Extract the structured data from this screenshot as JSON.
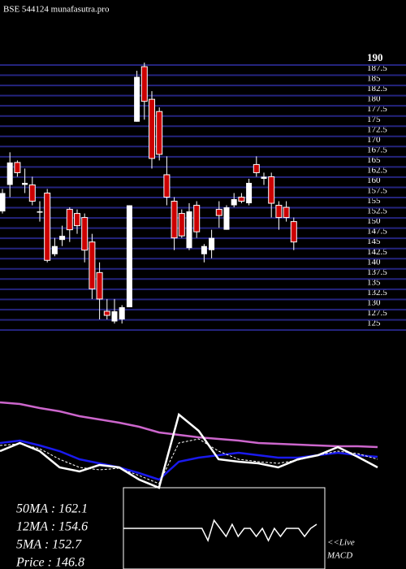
{
  "chart_data": {
    "type": "candlestick",
    "title": "BSE 544124  munafasutra.pro",
    "open": [
      152.5,
      159,
      164.5,
      159,
      159,
      152.5,
      157,
      142,
      145.5,
      153,
      152,
      151,
      145,
      137.5,
      128,
      125.5,
      126,
      129,
      174.5,
      188,
      180,
      177,
      161.5,
      155,
      152,
      143.5,
      154,
      142,
      143,
      153,
      148,
      154,
      156,
      154.5,
      164,
      160.5,
      161,
      154,
      153.5,
      150
    ],
    "high": [
      158,
      167,
      165,
      163,
      161,
      155,
      158,
      146,
      149,
      153.5,
      153,
      152,
      147,
      140,
      131,
      131,
      129.5,
      154,
      187,
      189,
      182,
      178,
      166,
      156,
      153,
      154.5,
      155,
      144.5,
      148,
      155,
      154,
      157,
      157,
      160.5,
      166,
      162,
      162,
      155,
      155,
      151
    ],
    "low": [
      152,
      156,
      161,
      157,
      154,
      150,
      140,
      141.5,
      144,
      145,
      147,
      140,
      131,
      126,
      126,
      125,
      125,
      129,
      174.5,
      175,
      163,
      165,
      154,
      143,
      146,
      143,
      146,
      140,
      141,
      148.5,
      148,
      153.5,
      154.5,
      154,
      161,
      159,
      151,
      148,
      150,
      143
    ],
    "close": [
      157,
      164.5,
      162,
      159.5,
      155,
      152.5,
      140.5,
      144,
      146.5,
      148,
      149,
      143,
      133.5,
      131,
      127,
      128,
      129,
      154,
      185.5,
      179.5,
      165.5,
      166.5,
      156,
      146,
      146.5,
      152.5,
      147.5,
      144,
      146,
      151.5,
      153.5,
      155.5,
      155,
      159.5,
      162,
      161,
      154.5,
      151,
      151,
      145
    ],
    "ylim": [
      125,
      190
    ],
    "yticks": [
      125,
      127.5,
      130,
      132.5,
      135,
      137.5,
      140,
      142.5,
      145,
      147.5,
      150,
      152.5,
      155,
      157.5,
      160,
      162.5,
      165,
      167.5,
      170,
      172.5,
      175,
      177.5,
      180,
      182.5,
      185,
      187.5,
      190
    ],
    "grid": true,
    "grid_color": "#24247e",
    "up_color": "#ffffff",
    "down_color": "#cc0000",
    "indicators": {
      "ylim": [
        0,
        120
      ],
      "series": [
        {
          "color": "#cc66cc",
          "style": "solid",
          "values": [
            110,
            108,
            103,
            99,
            93,
            89,
            85,
            80,
            73,
            70,
            67,
            65,
            63,
            60,
            59,
            58,
            57,
            56,
            56,
            55
          ]
        },
        {
          "color": "#1a1aee",
          "style": "solid",
          "values": [
            60,
            63,
            57,
            50,
            40,
            35,
            30,
            23,
            15,
            37,
            42,
            45,
            48,
            45,
            42,
            42,
            45,
            48,
            45,
            43
          ]
        },
        {
          "color": "#ffffff",
          "style": "solid",
          "values": [
            50,
            60,
            50,
            30,
            25,
            33,
            30,
            15,
            5,
            95,
            75,
            40,
            37,
            35,
            30,
            40,
            45,
            55,
            43,
            30
          ]
        },
        {
          "color": "#ffffff",
          "style": "dashed",
          "values": [
            57,
            59,
            53,
            40,
            30,
            27,
            29,
            20,
            10,
            60,
            65,
            50,
            40,
            37,
            35,
            39,
            45,
            50,
            47,
            40
          ]
        }
      ]
    },
    "macd": {
      "ylim": [
        -10,
        10
      ],
      "values": [
        0,
        0,
        0,
        0,
        0,
        0,
        0,
        0,
        0,
        0,
        0,
        0,
        0,
        0,
        -3,
        2,
        0,
        -2,
        1,
        -2,
        0,
        0,
        -2,
        0,
        -3,
        0,
        -2,
        0,
        0,
        0,
        -2,
        0,
        1
      ]
    },
    "stats": [
      "50MA : 162.1",
      "12MA : 154.6",
      "5MA : 152.7",
      "Price  : 146.8"
    ],
    "live": [
      "<<Live",
      "MACD"
    ]
  }
}
